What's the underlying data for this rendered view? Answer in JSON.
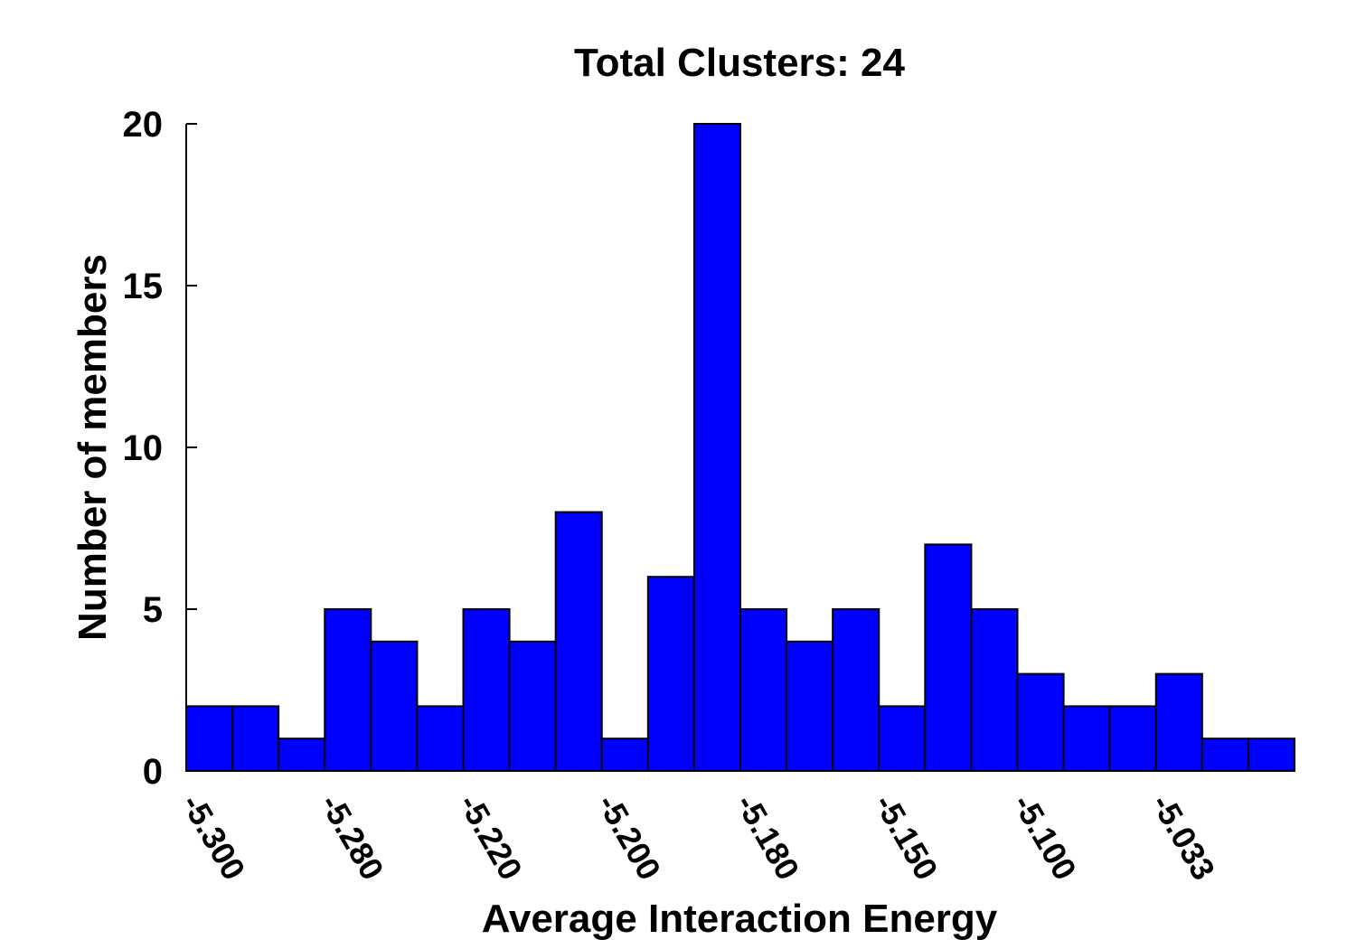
{
  "chart_data": {
    "type": "bar",
    "title": "Total Clusters: 24",
    "xlabel": "Average Interaction Energy",
    "ylabel": "Number of members",
    "ylim": [
      0,
      20
    ],
    "yticks": [
      0,
      5,
      10,
      15,
      20
    ],
    "xtick_labels": [
      "-5.300",
      "-5.280",
      "-5.220",
      "-5.200",
      "-5.180",
      "-5.150",
      "-5.100",
      "-5.033"
    ],
    "xtick_every": 3,
    "values": [
      2,
      2,
      1,
      5,
      4,
      2,
      5,
      4,
      8,
      1,
      6,
      20,
      5,
      4,
      5,
      2,
      7,
      5,
      3,
      2,
      2,
      3,
      1,
      1
    ],
    "bar_color": "#0000ff",
    "edge_color": "#000000",
    "grid": false,
    "legend": "none"
  }
}
